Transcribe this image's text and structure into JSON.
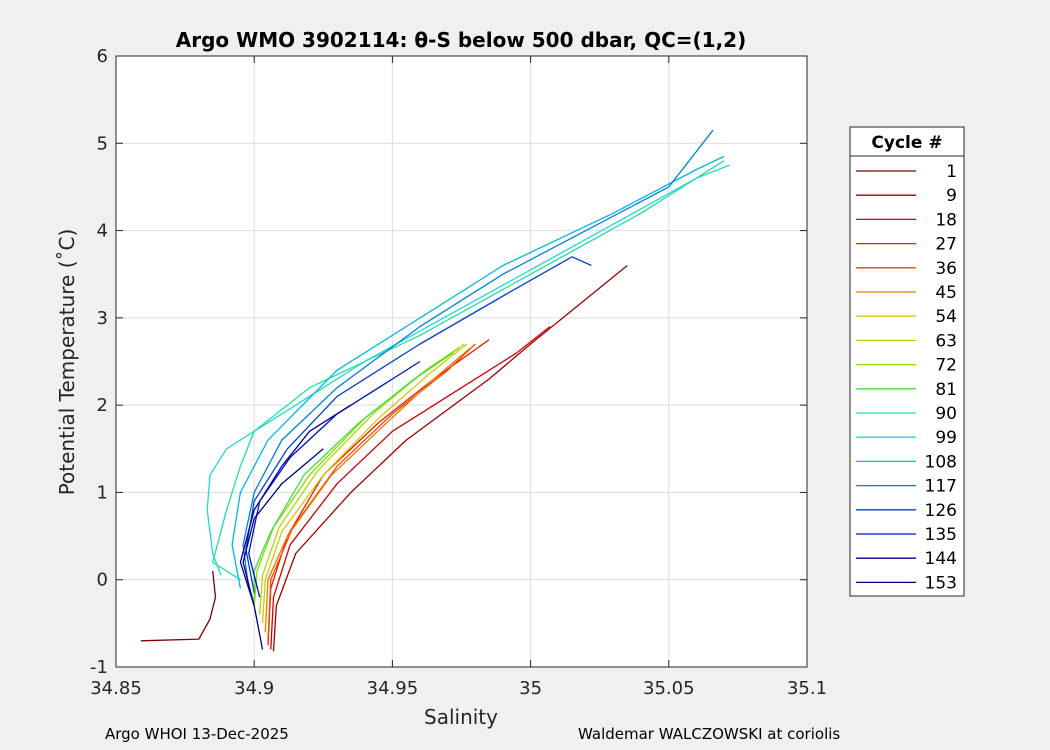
{
  "chart_data": {
    "type": "line",
    "title": "Argo WMO 3902114: θ-S below 500 dbar,  QC=(1,2)",
    "xlabel": "Salinity",
    "ylabel": "Potential Temperature (˚C)",
    "xlim": [
      34.85,
      35.1
    ],
    "ylim": [
      -1,
      6
    ],
    "xticks": [
      "34.85",
      "34.9",
      "34.95",
      "35",
      "35.05",
      "35.1"
    ],
    "yticks": [
      "-1",
      "0",
      "1",
      "2",
      "3",
      "4",
      "5",
      "6"
    ],
    "grid": true,
    "legend_title": "Cycle #",
    "legend_position": "right",
    "series": [
      {
        "name": "1",
        "color": "#800000",
        "points": [
          [
            34.859,
            -0.7
          ],
          [
            34.88,
            -0.68
          ],
          [
            34.884,
            -0.45
          ],
          [
            34.886,
            -0.2
          ],
          [
            34.885,
            0.1
          ]
        ]
      },
      {
        "name": "9",
        "color": "#a00000",
        "points": [
          [
            34.907,
            -0.82
          ],
          [
            34.908,
            -0.3
          ],
          [
            34.915,
            0.3
          ],
          [
            34.935,
            1.0
          ],
          [
            34.955,
            1.6
          ],
          [
            34.985,
            2.3
          ],
          [
            35.0,
            2.7
          ],
          [
            35.035,
            3.6
          ]
        ]
      },
      {
        "name": "18",
        "color": "#d00000",
        "points": [
          [
            34.906,
            -0.8
          ],
          [
            34.907,
            -0.2
          ],
          [
            34.913,
            0.4
          ],
          [
            34.93,
            1.1
          ],
          [
            34.95,
            1.7
          ],
          [
            34.975,
            2.2
          ],
          [
            34.995,
            2.6
          ],
          [
            35.007,
            2.9
          ]
        ]
      },
      {
        "name": "27",
        "color": "#e82000",
        "points": [
          [
            34.905,
            -0.75
          ],
          [
            34.906,
            -0.1
          ],
          [
            34.912,
            0.5
          ],
          [
            34.925,
            1.2
          ],
          [
            34.945,
            1.8
          ],
          [
            34.965,
            2.3
          ],
          [
            34.985,
            2.75
          ]
        ]
      },
      {
        "name": "36",
        "color": "#f04800",
        "points": [
          [
            34.905,
            -0.7
          ],
          [
            34.906,
            0.0
          ],
          [
            34.914,
            0.6
          ],
          [
            34.93,
            1.3
          ],
          [
            34.95,
            1.9
          ],
          [
            34.97,
            2.4
          ],
          [
            34.98,
            2.7
          ]
        ]
      },
      {
        "name": "45",
        "color": "#f07800",
        "points": [
          [
            34.904,
            -0.6
          ],
          [
            34.905,
            0.0
          ],
          [
            34.912,
            0.5
          ],
          [
            34.928,
            1.2
          ],
          [
            34.948,
            1.8
          ],
          [
            34.965,
            2.3
          ],
          [
            34.978,
            2.65
          ]
        ]
      },
      {
        "name": "54",
        "color": "#d8c800",
        "points": [
          [
            34.903,
            -0.5
          ],
          [
            34.904,
            0.0
          ],
          [
            34.91,
            0.55
          ],
          [
            34.925,
            1.2
          ],
          [
            34.945,
            1.85
          ],
          [
            34.963,
            2.35
          ],
          [
            34.977,
            2.7
          ]
        ]
      },
      {
        "name": "63",
        "color": "#b0d800",
        "points": [
          [
            34.902,
            -0.4
          ],
          [
            34.903,
            0.05
          ],
          [
            34.909,
            0.6
          ],
          [
            34.923,
            1.25
          ],
          [
            34.943,
            1.9
          ],
          [
            34.962,
            2.4
          ],
          [
            34.976,
            2.7
          ]
        ]
      },
      {
        "name": "72",
        "color": "#88e000",
        "points": [
          [
            34.9,
            -0.3
          ],
          [
            34.901,
            0.1
          ],
          [
            34.907,
            0.6
          ],
          [
            34.92,
            1.2
          ],
          [
            34.94,
            1.85
          ],
          [
            34.96,
            2.35
          ],
          [
            34.974,
            2.65
          ]
        ]
      },
      {
        "name": "81",
        "color": "#40e040",
        "points": [
          [
            34.9,
            -0.25
          ],
          [
            34.9,
            0.1
          ],
          [
            34.906,
            0.55
          ],
          [
            34.918,
            1.2
          ],
          [
            34.938,
            1.8
          ],
          [
            34.958,
            2.3
          ],
          [
            34.972,
            2.6
          ]
        ]
      },
      {
        "name": "90",
        "color": "#20e0a0",
        "points": [
          [
            34.895,
            0.0
          ],
          [
            34.885,
            0.2
          ],
          [
            34.89,
            0.8
          ],
          [
            34.895,
            1.3
          ],
          [
            34.9,
            1.7
          ],
          [
            34.92,
            2.2
          ],
          [
            34.96,
            2.8
          ],
          [
            35.0,
            3.5
          ],
          [
            35.04,
            4.2
          ],
          [
            35.07,
            4.8
          ]
        ]
      },
      {
        "name": "99",
        "color": "#20d8d8",
        "points": [
          [
            34.888,
            0.05
          ],
          [
            34.885,
            0.3
          ],
          [
            34.883,
            0.8
          ],
          [
            34.884,
            1.2
          ],
          [
            34.89,
            1.5
          ],
          [
            34.91,
            1.9
          ],
          [
            34.94,
            2.5
          ],
          [
            34.98,
            3.2
          ],
          [
            35.02,
            3.9
          ],
          [
            35.06,
            4.6
          ],
          [
            35.072,
            4.75
          ]
        ]
      },
      {
        "name": "108",
        "color": "#00b8e8",
        "points": [
          [
            34.895,
            -0.1
          ],
          [
            34.892,
            0.4
          ],
          [
            34.895,
            1.0
          ],
          [
            34.905,
            1.6
          ],
          [
            34.93,
            2.4
          ],
          [
            34.96,
            3.0
          ],
          [
            34.99,
            3.6
          ],
          [
            35.03,
            4.2
          ],
          [
            35.06,
            4.7
          ],
          [
            35.07,
            4.85
          ]
        ]
      },
      {
        "name": "117",
        "color": "#0080e0",
        "points": [
          [
            34.898,
            -0.1
          ],
          [
            34.896,
            0.4
          ],
          [
            34.9,
            1.0
          ],
          [
            34.91,
            1.6
          ],
          [
            34.93,
            2.2
          ],
          [
            34.96,
            2.9
          ],
          [
            34.99,
            3.5
          ],
          [
            35.02,
            4.0
          ],
          [
            35.05,
            4.5
          ],
          [
            35.066,
            5.15
          ]
        ]
      },
      {
        "name": "126",
        "color": "#0040d0",
        "points": [
          [
            34.9,
            -0.15
          ],
          [
            34.897,
            0.35
          ],
          [
            34.9,
            0.9
          ],
          [
            34.912,
            1.5
          ],
          [
            34.93,
            2.1
          ],
          [
            34.96,
            2.7
          ],
          [
            34.99,
            3.25
          ],
          [
            35.015,
            3.7
          ],
          [
            35.022,
            3.6
          ]
        ]
      },
      {
        "name": "135",
        "color": "#0010c0",
        "points": [
          [
            34.902,
            -0.2
          ],
          [
            34.898,
            0.3
          ],
          [
            34.902,
            0.9
          ],
          [
            34.913,
            1.4
          ],
          [
            34.93,
            1.9
          ],
          [
            34.95,
            2.3
          ],
          [
            34.96,
            2.5
          ]
        ]
      },
      {
        "name": "144",
        "color": "#0000a0",
        "points": [
          [
            34.9,
            -0.3
          ],
          [
            34.895,
            0.2
          ],
          [
            34.9,
            0.8
          ],
          [
            34.91,
            1.3
          ],
          [
            34.92,
            1.7
          ],
          [
            34.935,
            2.0
          ]
        ]
      },
      {
        "name": "153",
        "color": "#000080",
        "points": [
          [
            34.903,
            -0.8
          ],
          [
            34.9,
            -0.3
          ],
          [
            34.896,
            0.2
          ],
          [
            34.9,
            0.7
          ],
          [
            34.91,
            1.1
          ],
          [
            34.925,
            1.5
          ]
        ]
      }
    ]
  },
  "footer": {
    "left": "Argo WHOI 13-Dec-2025",
    "right": "Waldemar WALCZOWSKI at coriolis"
  }
}
